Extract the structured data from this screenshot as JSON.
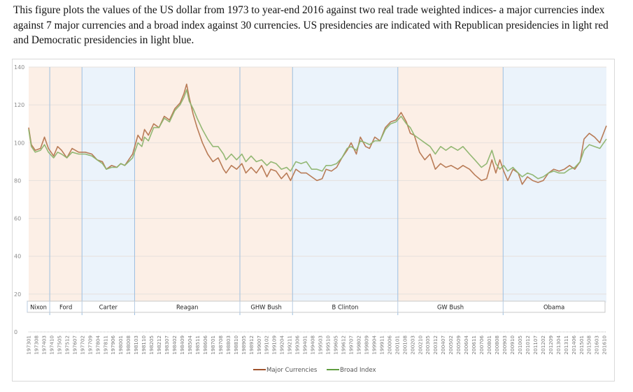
{
  "caption": "This figure plots the values of the US dollar from 1973 to year-end 2016 against two real trade weighted indices- a major currencies index against 7 major currencies and a broad index against 30 currencies.  US presidencies are indicated with Republican presidencies in light red and Democratic presidencies in light blue.",
  "colors": {
    "major": "#b5754f",
    "broad": "#8db46e",
    "legend_major": "#a0522d",
    "legend_broad": "#5f9e3f",
    "republican": "#fcefe6",
    "democratic": "#ebf3fb",
    "divider": "#9dbfe0"
  },
  "chart_data": {
    "type": "line",
    "title": "",
    "xlabel": "",
    "ylabel": "",
    "ylim": [
      0,
      140
    ],
    "yticks": [
      0,
      20,
      40,
      60,
      80,
      100,
      120,
      140
    ],
    "x_range": [
      1973.0,
      2016.9
    ],
    "grid": true,
    "legend": "bottom",
    "xtick_labels": [
      "197301",
      "197308",
      "197403",
      "197410",
      "197505",
      "197512",
      "197607",
      "197702",
      "197709",
      "197804",
      "197811",
      "197906",
      "198001",
      "198008",
      "198103",
      "198110",
      "198205",
      "198212",
      "198307",
      "198402",
      "198409",
      "198504",
      "198511",
      "198606",
      "198701",
      "198708",
      "198803",
      "198810",
      "198905",
      "198912",
      "199007",
      "199102",
      "199109",
      "199204",
      "199211",
      "199306",
      "199401",
      "199408",
      "199503",
      "199510",
      "199605",
      "199612",
      "199707",
      "199802",
      "199809",
      "199904",
      "199911",
      "200006",
      "200101",
      "200108",
      "200203",
      "200210",
      "200305",
      "200312",
      "200407",
      "200502",
      "200509",
      "200604",
      "200611",
      "200706",
      "200801",
      "200808",
      "200903",
      "200910",
      "201005",
      "201012",
      "201107",
      "201202",
      "201209",
      "201304",
      "201311",
      "201406",
      "201501",
      "201508",
      "201603",
      "201610"
    ],
    "presidencies": [
      {
        "name": "Nixon",
        "party": "R",
        "start": 1973.0,
        "end": 1974.6
      },
      {
        "name": "Ford",
        "party": "R",
        "start": 1974.6,
        "end": 1977.05
      },
      {
        "name": "Carter",
        "party": "D",
        "start": 1977.05,
        "end": 1981.05
      },
      {
        "name": "Reagan",
        "party": "R",
        "start": 1981.05,
        "end": 1989.05
      },
      {
        "name": "GHW Bush",
        "party": "R",
        "start": 1989.05,
        "end": 1993.05
      },
      {
        "name": "B Clinton",
        "party": "D",
        "start": 1993.05,
        "end": 2001.05
      },
      {
        "name": "GW Bush",
        "party": "R",
        "start": 2001.05,
        "end": 2009.05
      },
      {
        "name": "Obama",
        "party": "D",
        "start": 2009.05,
        "end": 2016.9
      }
    ],
    "series": [
      {
        "name": "Major Currencies",
        "x": [
          1973.0,
          1973.2,
          1973.5,
          1973.9,
          1974.2,
          1974.5,
          1974.9,
          1975.2,
          1975.5,
          1975.9,
          1976.3,
          1976.8,
          1977.3,
          1977.8,
          1978.2,
          1978.6,
          1978.9,
          1979.3,
          1979.7,
          1980.0,
          1980.3,
          1980.6,
          1980.9,
          1981.3,
          1981.6,
          1981.8,
          1982.1,
          1982.5,
          1982.9,
          1983.3,
          1983.7,
          1984.1,
          1984.5,
          1984.8,
          1985.0,
          1985.2,
          1985.5,
          1985.8,
          1986.2,
          1986.6,
          1987.0,
          1987.4,
          1987.8,
          1988.0,
          1988.4,
          1988.8,
          1989.2,
          1989.5,
          1989.9,
          1990.3,
          1990.7,
          1991.1,
          1991.4,
          1991.8,
          1992.2,
          1992.6,
          1992.9,
          1993.3,
          1993.7,
          1994.1,
          1994.5,
          1994.9,
          1995.3,
          1995.6,
          1996.0,
          1996.4,
          1996.8,
          1997.2,
          1997.5,
          1997.9,
          1998.2,
          1998.6,
          1998.9,
          1999.3,
          1999.7,
          2000.1,
          2000.5,
          2000.9,
          2001.3,
          2001.7,
          2002.0,
          2002.3,
          2002.7,
          2003.1,
          2003.5,
          2003.9,
          2004.3,
          2004.7,
          2005.1,
          2005.6,
          2006.0,
          2006.5,
          2006.9,
          2007.4,
          2007.8,
          2008.2,
          2008.5,
          2008.8,
          2009.1,
          2009.4,
          2009.8,
          2010.2,
          2010.5,
          2010.9,
          2011.3,
          2011.7,
          2012.1,
          2012.5,
          2012.9,
          2013.3,
          2013.7,
          2014.1,
          2014.5,
          2014.9,
          2015.2,
          2015.6,
          2016.0,
          2016.4,
          2016.9
        ],
        "values": [
          108,
          99,
          96,
          97,
          103,
          97,
          93,
          98,
          96,
          92,
          97,
          95,
          95,
          94,
          91,
          90,
          86,
          88,
          87,
          89,
          88,
          91,
          94,
          104,
          101,
          107,
          104,
          110,
          108,
          114,
          112,
          118,
          121,
          126,
          131,
          124,
          115,
          108,
          100,
          94,
          90,
          92,
          86,
          84,
          88,
          86,
          89,
          84,
          87,
          84,
          88,
          82,
          86,
          85,
          81,
          84,
          80,
          86,
          84,
          84,
          82,
          80,
          81,
          86,
          85,
          87,
          92,
          96,
          100,
          94,
          103,
          98,
          97,
          103,
          101,
          108,
          111,
          112,
          116,
          111,
          105,
          104,
          95,
          91,
          94,
          86,
          89,
          87,
          88,
          86,
          88,
          86,
          83,
          80,
          81,
          91,
          84,
          91,
          85,
          80,
          86,
          84,
          78,
          82,
          80,
          79,
          80,
          84,
          86,
          85,
          86,
          88,
          86,
          90,
          102,
          105,
          103,
          100,
          109
        ]
      },
      {
        "name": "Broad Index",
        "x": [
          1973.0,
          1973.2,
          1973.5,
          1973.9,
          1974.2,
          1974.5,
          1974.9,
          1975.2,
          1975.5,
          1975.9,
          1976.3,
          1976.8,
          1977.3,
          1977.8,
          1978.2,
          1978.6,
          1978.9,
          1979.3,
          1979.7,
          1980.0,
          1980.3,
          1980.6,
          1980.9,
          1981.3,
          1981.6,
          1981.8,
          1982.1,
          1982.5,
          1982.9,
          1983.3,
          1983.7,
          1984.1,
          1984.5,
          1984.8,
          1985.0,
          1985.2,
          1985.5,
          1985.8,
          1986.2,
          1986.6,
          1987.0,
          1987.4,
          1987.8,
          1988.0,
          1988.4,
          1988.8,
          1989.2,
          1989.5,
          1989.9,
          1990.3,
          1990.7,
          1991.1,
          1991.4,
          1991.8,
          1992.2,
          1992.6,
          1992.9,
          1993.3,
          1993.7,
          1994.1,
          1994.5,
          1994.9,
          1995.3,
          1995.6,
          1996.0,
          1996.4,
          1996.8,
          1997.2,
          1997.5,
          1997.9,
          1998.2,
          1998.6,
          1998.9,
          1999.3,
          1999.7,
          2000.1,
          2000.5,
          2000.9,
          2001.3,
          2001.7,
          2002.0,
          2002.3,
          2002.7,
          2003.1,
          2003.5,
          2003.9,
          2004.3,
          2004.7,
          2005.1,
          2005.6,
          2006.0,
          2006.5,
          2006.9,
          2007.4,
          2007.8,
          2008.2,
          2008.5,
          2008.8,
          2009.1,
          2009.4,
          2009.8,
          2010.2,
          2010.5,
          2010.9,
          2011.3,
          2011.7,
          2012.1,
          2012.5,
          2012.9,
          2013.3,
          2013.7,
          2014.1,
          2014.5,
          2014.9,
          2015.2,
          2015.6,
          2016.0,
          2016.4,
          2016.9
        ],
        "values": [
          107,
          98,
          95,
          96,
          99,
          95,
          92,
          95,
          94,
          92,
          95,
          94,
          94,
          93,
          91,
          89,
          86,
          87,
          87,
          89,
          88,
          90,
          92,
          100,
          98,
          103,
          101,
          108,
          108,
          113,
          111,
          117,
          120,
          124,
          128,
          122,
          118,
          113,
          107,
          102,
          98,
          98,
          94,
          91,
          94,
          91,
          94,
          90,
          93,
          90,
          91,
          88,
          90,
          89,
          86,
          87,
          85,
          90,
          89,
          90,
          86,
          86,
          85,
          88,
          88,
          89,
          92,
          97,
          98,
          96,
          101,
          100,
          99,
          101,
          101,
          107,
          110,
          111,
          114,
          110,
          108,
          104,
          102,
          100,
          98,
          94,
          98,
          96,
          98,
          96,
          98,
          94,
          91,
          87,
          89,
          96,
          89,
          86,
          88,
          85,
          87,
          84,
          82,
          84,
          83,
          81,
          82,
          84,
          85,
          84,
          84,
          86,
          87,
          90,
          96,
          99,
          98,
          97,
          102
        ]
      }
    ]
  },
  "legend": {
    "major_label": "Major Currencies",
    "broad_label": "Broad Index"
  }
}
